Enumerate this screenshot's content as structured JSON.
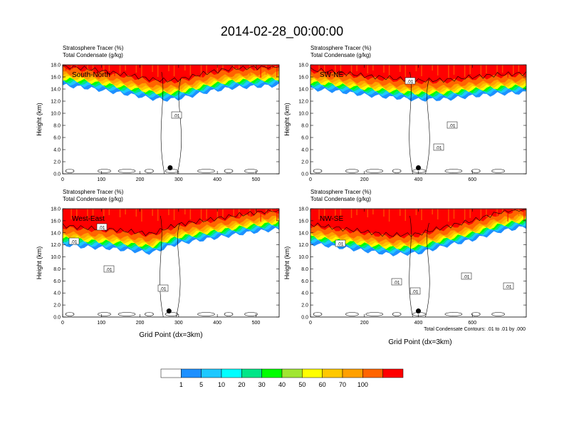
{
  "title": "2014-02-28_00:00:00",
  "var_line1": "Stratosphere Tracer   (%)",
  "var_line2": "Total Condensate   (g/kg)",
  "y_label": "Height (km)",
  "x_label": "Grid Point (dx=3km)",
  "contour_note": "Total Condensate Contours: .01 to .01 by .000",
  "colors": {
    "levels": [
      "#ffffff",
      "#1e90ff",
      "#1ec8ff",
      "#00ffff",
      "#00e687",
      "#00ff00",
      "#a0e632",
      "#ffff00",
      "#ffc800",
      "#ffa000",
      "#ff6400",
      "#ff0000"
    ],
    "contour": "#000000"
  },
  "chart_data": [
    {
      "type": "heatmap",
      "panel": "South-North",
      "label": "South-North",
      "xlim": [
        0,
        560
      ],
      "ylim": [
        0,
        18
      ],
      "x_ticks": [
        "0",
        "100",
        "200",
        "300",
        "400",
        "500"
      ],
      "y_ticks": [
        "0.0",
        "2.0",
        "4.0",
        "6.0",
        "8.0",
        "10.0",
        "12.0",
        "14.0",
        "16.0",
        "18.0"
      ],
      "tracer_base_km": [
        [
          0,
          14.6
        ],
        [
          60,
          14.2
        ],
        [
          120,
          13.6
        ],
        [
          180,
          13.0
        ],
        [
          230,
          12.4
        ],
        [
          270,
          12.2
        ],
        [
          300,
          12.4
        ],
        [
          330,
          12.8
        ],
        [
          380,
          13.6
        ],
        [
          440,
          14.2
        ],
        [
          500,
          14.4
        ],
        [
          560,
          14.6
        ]
      ],
      "contour_labels": [
        ".01"
      ],
      "marker": {
        "x": 278,
        "y_km": 1.0
      }
    },
    {
      "type": "heatmap",
      "panel": "SW-NE",
      "label": "SW-NE",
      "xlim": [
        0,
        800
      ],
      "ylim": [
        0,
        18
      ],
      "x_ticks": [
        "0",
        "200",
        "400",
        "600"
      ],
      "y_ticks": [
        "0.0",
        "2.0",
        "4.0",
        "6.0",
        "8.0",
        "10.0",
        "12.0",
        "14.0",
        "16.0",
        "18.0"
      ],
      "tracer_base_km": [
        [
          0,
          14.0
        ],
        [
          100,
          13.6
        ],
        [
          200,
          13.0
        ],
        [
          300,
          12.6
        ],
        [
          400,
          12.2
        ],
        [
          500,
          12.3
        ],
        [
          600,
          12.8
        ],
        [
          700,
          13.2
        ],
        [
          800,
          13.4
        ]
      ],
      "contour_labels": [
        ".01",
        ".01",
        ".01"
      ],
      "marker": {
        "x": 400,
        "y_km": 1.0
      }
    },
    {
      "type": "heatmap",
      "panel": "West-East",
      "label": "West-East",
      "xlim": [
        0,
        560
      ],
      "ylim": [
        0,
        18
      ],
      "x_ticks": [
        "0",
        "100",
        "200",
        "300",
        "400",
        "500"
      ],
      "y_ticks": [
        "0.0",
        "2.0",
        "4.0",
        "6.0",
        "8.0",
        "10.0",
        "12.0",
        "14.0",
        "16.0",
        "18.0"
      ],
      "tracer_base_km": [
        [
          0,
          12.0
        ],
        [
          60,
          11.6
        ],
        [
          120,
          11.4
        ],
        [
          180,
          11.0
        ],
        [
          230,
          10.6
        ],
        [
          270,
          11.6
        ],
        [
          300,
          12.2
        ],
        [
          360,
          12.8
        ],
        [
          420,
          13.4
        ],
        [
          480,
          14.0
        ],
        [
          560,
          14.6
        ]
      ],
      "contour_labels": [
        ".01",
        ".01",
        ".01",
        ".01"
      ],
      "marker": {
        "x": 275,
        "y_km": 1.0
      }
    },
    {
      "type": "heatmap",
      "panel": "NW-SE",
      "label": "NW-SE",
      "xlim": [
        0,
        800
      ],
      "ylim": [
        0,
        18
      ],
      "x_ticks": [
        "0",
        "200",
        "400",
        "600"
      ],
      "y_ticks": [
        "0.0",
        "2.0",
        "4.0",
        "6.0",
        "8.0",
        "10.0",
        "12.0",
        "14.0",
        "16.0",
        "18.0"
      ],
      "tracer_base_km": [
        [
          0,
          12.2
        ],
        [
          100,
          11.6
        ],
        [
          200,
          11.0
        ],
        [
          300,
          10.4
        ],
        [
          400,
          10.6
        ],
        [
          500,
          11.8
        ],
        [
          600,
          12.8
        ],
        [
          700,
          14.2
        ],
        [
          800,
          15.0
        ]
      ],
      "contour_labels": [
        ".01",
        ".01",
        ".01",
        ".01",
        ".01"
      ],
      "marker": {
        "x": 400,
        "y_km": 1.0
      }
    }
  ],
  "colorbar": {
    "labels": [
      "1",
      "5",
      "10",
      "20",
      "30",
      "40",
      "50",
      "60",
      "70",
      "100"
    ]
  }
}
